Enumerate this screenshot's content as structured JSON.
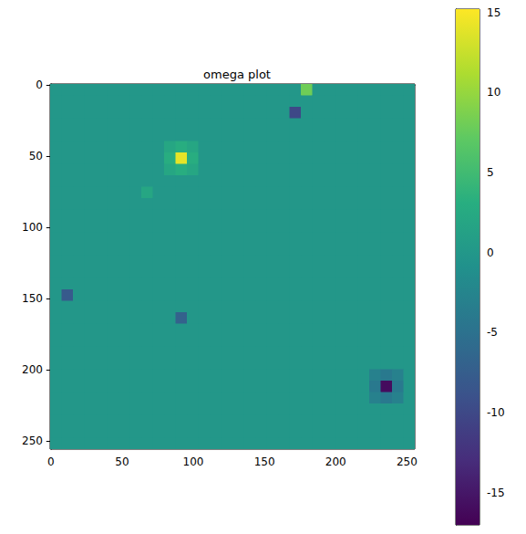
{
  "chart_data": {
    "type": "heatmap",
    "title": "omega plot",
    "color": "viridis",
    "xlim": [
      -0.5,
      255.5
    ],
    "ylim": [
      255.5,
      -0.5
    ],
    "xticks": [
      0,
      50,
      100,
      150,
      200,
      250
    ],
    "yticks": [
      0,
      50,
      100,
      150,
      200,
      250
    ],
    "colorbar": {
      "range": [
        -17,
        15.2
      ],
      "ticks": [
        -15,
        -10,
        -5,
        0,
        5,
        10,
        15
      ]
    },
    "z": [
      [
        0,
        0,
        0,
        0,
        0,
        0,
        0,
        0,
        0,
        0,
        0,
        0,
        0,
        0,
        0,
        0,
        0,
        0,
        0,
        0,
        0,
        0,
        8,
        0,
        0,
        0,
        0,
        0,
        0,
        0,
        0,
        0
      ],
      [
        0,
        0,
        0,
        0,
        0,
        0,
        0,
        0,
        0,
        0,
        0,
        0,
        0,
        0,
        0,
        0,
        0,
        0,
        0,
        0,
        0,
        0,
        0,
        0,
        0,
        0,
        0,
        0,
        0,
        0,
        0,
        0
      ],
      [
        0,
        0,
        0,
        0,
        0,
        0,
        0,
        0,
        0,
        0,
        0,
        0,
        0,
        0,
        0,
        0,
        0,
        0,
        0,
        0,
        0,
        -10,
        0,
        0,
        0,
        0,
        0,
        0,
        0,
        0,
        0,
        0
      ],
      [
        0,
        0,
        0,
        0,
        0,
        0,
        0,
        0,
        0,
        0,
        0,
        0,
        0,
        0,
        0,
        0,
        0,
        0,
        0,
        0,
        0,
        0,
        0,
        0,
        0,
        0,
        0,
        0,
        0,
        0,
        0,
        0
      ],
      [
        0,
        0,
        0,
        0,
        0,
        0,
        0,
        0,
        0,
        0,
        0,
        0,
        0,
        0,
        0,
        0,
        0,
        0,
        0,
        0,
        0,
        0,
        0,
        0,
        0,
        0,
        0,
        0,
        0,
        0,
        0,
        0
      ],
      [
        0,
        0,
        0,
        0,
        0,
        0,
        0,
        0,
        0,
        0,
        2,
        3,
        2,
        0,
        0,
        0,
        0,
        0,
        0,
        0,
        0,
        0,
        0,
        0,
        0,
        0,
        0,
        0,
        0,
        0,
        0,
        0
      ],
      [
        0,
        0,
        0,
        0,
        0,
        0,
        0,
        0,
        0,
        0,
        3,
        14,
        3,
        0,
        0,
        0,
        0,
        0,
        0,
        0,
        0,
        0,
        0,
        0,
        0,
        0,
        0,
        0,
        0,
        0,
        0,
        0
      ],
      [
        0,
        0,
        0,
        0,
        0,
        0,
        0,
        0,
        0,
        0,
        2,
        3,
        2,
        0,
        0,
        0,
        0,
        0,
        0,
        0,
        0,
        0,
        0,
        0,
        0,
        0,
        0,
        0,
        0,
        0,
        0,
        0
      ],
      [
        0,
        0,
        0,
        0,
        0,
        0,
        0,
        0,
        0,
        0,
        0,
        0,
        0,
        0,
        0,
        0,
        0,
        0,
        0,
        0,
        0,
        0,
        0,
        0,
        0,
        0,
        0,
        0,
        0,
        0,
        0,
        0
      ],
      [
        0,
        0,
        0,
        0,
        0,
        0,
        0,
        0,
        2,
        0,
        0,
        0,
        0,
        0,
        0,
        0,
        0,
        0,
        0,
        0,
        0,
        0,
        0,
        0,
        0,
        0,
        0,
        0,
        0,
        0,
        0,
        0
      ],
      [
        0,
        0,
        0,
        0,
        0,
        0,
        0,
        0,
        0,
        0,
        0,
        0,
        0,
        0,
        0,
        0,
        0,
        0,
        0,
        0,
        0,
        0,
        0,
        0,
        0,
        0,
        0,
        0,
        0,
        0,
        0,
        0
      ],
      [
        0,
        0,
        0,
        0,
        0,
        0,
        0,
        0,
        0,
        0,
        0,
        0,
        0,
        0,
        0,
        0,
        0,
        0,
        0,
        0,
        0,
        0,
        0,
        0,
        0,
        0,
        0,
        0,
        0,
        0,
        0,
        0
      ],
      [
        0,
        0,
        0,
        0,
        0,
        0,
        0,
        0,
        0,
        0,
        0,
        0,
        0,
        0,
        0,
        0,
        0,
        0,
        0,
        0,
        0,
        0,
        0,
        0,
        0,
        0,
        0,
        0,
        0,
        0,
        0,
        0
      ],
      [
        0,
        0,
        0,
        0,
        0,
        0,
        0,
        0,
        0,
        0,
        0,
        0,
        0,
        0,
        0,
        0,
        0,
        0,
        0,
        0,
        0,
        0,
        0,
        0,
        0,
        0,
        0,
        0,
        0,
        0,
        0,
        0
      ],
      [
        0,
        0,
        0,
        0,
        0,
        0,
        0,
        0,
        0,
        0,
        0,
        0,
        0,
        0,
        0,
        0,
        0,
        0,
        0,
        0,
        0,
        0,
        0,
        0,
        0,
        0,
        0,
        0,
        0,
        0,
        0,
        0
      ],
      [
        0,
        0,
        0,
        0,
        0,
        0,
        0,
        0,
        0,
        0,
        0,
        0,
        0,
        0,
        0,
        0,
        0,
        0,
        0,
        0,
        0,
        0,
        0,
        0,
        0,
        0,
        0,
        0,
        0,
        0,
        0,
        0
      ],
      [
        0,
        0,
        0,
        0,
        0,
        0,
        0,
        0,
        0,
        0,
        0,
        0,
        0,
        0,
        0,
        0,
        0,
        0,
        0,
        0,
        0,
        0,
        0,
        0,
        0,
        0,
        0,
        0,
        0,
        0,
        0,
        0
      ],
      [
        0,
        0,
        0,
        0,
        0,
        0,
        0,
        0,
        0,
        0,
        0,
        0,
        0,
        0,
        0,
        0,
        0,
        0,
        0,
        0,
        0,
        0,
        0,
        0,
        0,
        0,
        0,
        0,
        0,
        0,
        0,
        0
      ],
      [
        0,
        -8,
        0,
        0,
        0,
        0,
        0,
        0,
        0,
        0,
        0,
        0,
        0,
        0,
        0,
        0,
        0,
        0,
        0,
        0,
        0,
        0,
        0,
        0,
        0,
        0,
        0,
        0,
        0,
        0,
        0,
        0
      ],
      [
        0,
        0,
        0,
        0,
        0,
        0,
        0,
        0,
        0,
        0,
        0,
        0,
        0,
        0,
        0,
        0,
        0,
        0,
        0,
        0,
        0,
        0,
        0,
        0,
        0,
        0,
        0,
        0,
        0,
        0,
        0,
        0
      ],
      [
        0,
        0,
        0,
        0,
        0,
        0,
        0,
        0,
        0,
        0,
        0,
        -7,
        0,
        0,
        0,
        0,
        0,
        0,
        0,
        0,
        0,
        0,
        0,
        0,
        0,
        0,
        0,
        0,
        0,
        0,
        0,
        0
      ],
      [
        0,
        0,
        0,
        0,
        0,
        0,
        0,
        0,
        0,
        0,
        0,
        0,
        0,
        0,
        0,
        0,
        0,
        0,
        0,
        0,
        0,
        0,
        0,
        0,
        0,
        0,
        0,
        0,
        0,
        0,
        0,
        0
      ],
      [
        0,
        0,
        0,
        0,
        0,
        0,
        0,
        0,
        0,
        0,
        0,
        0,
        0,
        0,
        0,
        0,
        0,
        0,
        0,
        0,
        0,
        0,
        0,
        0,
        0,
        0,
        0,
        0,
        0,
        0,
        0,
        0
      ],
      [
        0,
        0,
        0,
        0,
        0,
        0,
        0,
        0,
        0,
        0,
        0,
        0,
        0,
        0,
        0,
        0,
        0,
        0,
        0,
        0,
        0,
        0,
        0,
        0,
        0,
        0,
        0,
        0,
        0,
        0,
        0,
        0
      ],
      [
        0,
        0,
        0,
        0,
        0,
        0,
        0,
        0,
        0,
        0,
        0,
        0,
        0,
        0,
        0,
        0,
        0,
        0,
        0,
        0,
        0,
        0,
        0,
        0,
        0,
        0,
        0,
        0,
        0,
        0,
        0,
        0
      ],
      [
        0,
        0,
        0,
        0,
        0,
        0,
        0,
        0,
        0,
        0,
        0,
        0,
        0,
        0,
        0,
        0,
        0,
        0,
        0,
        0,
        0,
        0,
        0,
        0,
        0,
        0,
        0,
        0,
        -3,
        -4,
        -3,
        0
      ],
      [
        0,
        0,
        0,
        0,
        0,
        0,
        0,
        0,
        0,
        0,
        0,
        0,
        0,
        0,
        0,
        0,
        0,
        0,
        0,
        0,
        0,
        0,
        0,
        0,
        0,
        0,
        0,
        0,
        -4,
        -16,
        -4,
        0
      ],
      [
        0,
        0,
        0,
        0,
        0,
        0,
        0,
        0,
        0,
        0,
        0,
        0,
        0,
        0,
        0,
        0,
        0,
        0,
        0,
        0,
        0,
        0,
        0,
        0,
        0,
        0,
        0,
        0,
        -3,
        -4,
        -3,
        0
      ],
      [
        0,
        0,
        0,
        0,
        0,
        0,
        0,
        0,
        0,
        0,
        0,
        0,
        0,
        0,
        0,
        0,
        0,
        0,
        0,
        0,
        0,
        0,
        0,
        0,
        0,
        0,
        0,
        0,
        0,
        0,
        0,
        0
      ],
      [
        0,
        0,
        0,
        0,
        0,
        0,
        0,
        0,
        0,
        0,
        0,
        0,
        0,
        0,
        0,
        0,
        0,
        0,
        0,
        0,
        0,
        0,
        0,
        0,
        0,
        0,
        0,
        0,
        0,
        0,
        0,
        0
      ],
      [
        0,
        0,
        0,
        0,
        0,
        0,
        0,
        0,
        0,
        0,
        0,
        0,
        0,
        0,
        0,
        0,
        0,
        0,
        0,
        0,
        0,
        0,
        0,
        0,
        0,
        0,
        0,
        0,
        0,
        0,
        0,
        0
      ],
      [
        0,
        0,
        0,
        0,
        0,
        0,
        0,
        0,
        0,
        0,
        0,
        0,
        0,
        0,
        0,
        0,
        0,
        0,
        0,
        0,
        0,
        0,
        0,
        0,
        0,
        0,
        0,
        0,
        0,
        0,
        0,
        0
      ]
    ]
  }
}
